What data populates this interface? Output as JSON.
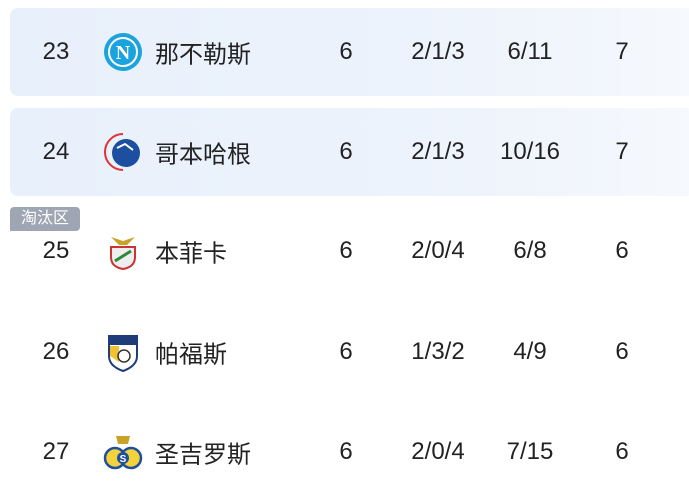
{
  "zone_badge": "淘汰区",
  "rows": [
    {
      "rank": "23",
      "team": "那不勒斯",
      "logo": "napoli-crest-icon",
      "played": "6",
      "wdl": "2/1/3",
      "goals": "6/11",
      "points": "7",
      "highlighted": true
    },
    {
      "rank": "24",
      "team": "哥本哈根",
      "logo": "copenhagen-lion-crest-icon",
      "played": "6",
      "wdl": "2/1/3",
      "goals": "10/16",
      "points": "7",
      "highlighted": true
    },
    {
      "rank": "25",
      "team": "本菲卡",
      "logo": "benfica-eagle-crest-icon",
      "played": "6",
      "wdl": "2/0/4",
      "goals": "6/8",
      "points": "6",
      "highlighted": false
    },
    {
      "rank": "26",
      "team": "帕福斯",
      "logo": "pafos-crest-icon",
      "played": "6",
      "wdl": "1/3/2",
      "goals": "4/9",
      "points": "6",
      "highlighted": false
    },
    {
      "rank": "27",
      "team": "圣吉罗斯",
      "logo": "union-sg-crest-icon",
      "played": "6",
      "wdl": "2/0/4",
      "goals": "7/15",
      "points": "6",
      "highlighted": false
    }
  ],
  "colors": {
    "highlight_row": "#e8f0fb",
    "badge": "#9ea6b3"
  }
}
